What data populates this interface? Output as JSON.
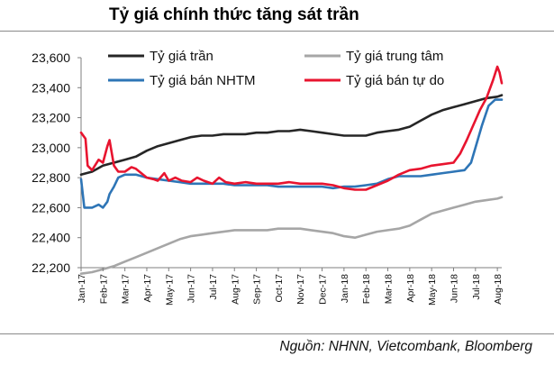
{
  "chart_data": {
    "type": "line",
    "title": "Tỷ giá chính thức tăng sát trần",
    "source": "Nguồn: NHNN, Vietcombank, Bloomberg",
    "ylim": [
      22200,
      23600
    ],
    "yticks": [
      22200,
      22400,
      22600,
      22800,
      23000,
      23200,
      23400,
      23600
    ],
    "ytick_labels": [
      "22,200",
      "22,400",
      "22,600",
      "22,800",
      "23,000",
      "23,200",
      "23,400",
      "23,600"
    ],
    "x_range": [
      0,
      19.2
    ],
    "categories": [
      "Jan-17",
      "Feb-17",
      "Mar-17",
      "Apr-17",
      "May-17",
      "Jun-17",
      "Jul-17",
      "Aug-17",
      "Sep-17",
      "Oct-17",
      "Nov-17",
      "Dec-17",
      "Jan-18",
      "Feb-18",
      "Mar-18",
      "Apr-18",
      "May-18",
      "Jun-18",
      "Jul-18",
      "Aug-18"
    ],
    "grid": false,
    "legend": "top",
    "series": [
      {
        "name": "Tỷ giá trần",
        "color": "#262626",
        "points": [
          [
            0,
            22820
          ],
          [
            0.5,
            22840
          ],
          [
            1,
            22880
          ],
          [
            1.5,
            22900
          ],
          [
            2,
            22920
          ],
          [
            2.5,
            22940
          ],
          [
            3,
            22980
          ],
          [
            3.5,
            23010
          ],
          [
            4,
            23030
          ],
          [
            4.5,
            23050
          ],
          [
            5,
            23070
          ],
          [
            5.5,
            23080
          ],
          [
            6,
            23080
          ],
          [
            6.5,
            23090
          ],
          [
            7,
            23090
          ],
          [
            7.5,
            23090
          ],
          [
            8,
            23100
          ],
          [
            8.5,
            23100
          ],
          [
            9,
            23110
          ],
          [
            9.5,
            23110
          ],
          [
            10,
            23120
          ],
          [
            10.5,
            23110
          ],
          [
            11,
            23100
          ],
          [
            11.5,
            23090
          ],
          [
            12,
            23080
          ],
          [
            12.5,
            23080
          ],
          [
            13,
            23080
          ],
          [
            13.5,
            23100
          ],
          [
            14,
            23110
          ],
          [
            14.5,
            23120
          ],
          [
            15,
            23140
          ],
          [
            15.5,
            23180
          ],
          [
            16,
            23220
          ],
          [
            16.5,
            23250
          ],
          [
            17,
            23270
          ],
          [
            17.5,
            23290
          ],
          [
            18,
            23310
          ],
          [
            18.5,
            23330
          ],
          [
            19,
            23340
          ],
          [
            19.2,
            23350
          ]
        ]
      },
      {
        "name": "Tỷ giá trung tâm",
        "color": "#a6a6a6",
        "points": [
          [
            0,
            22160
          ],
          [
            0.5,
            22170
          ],
          [
            1,
            22190
          ],
          [
            1.5,
            22210
          ],
          [
            2,
            22240
          ],
          [
            2.5,
            22270
          ],
          [
            3,
            22300
          ],
          [
            3.5,
            22330
          ],
          [
            4,
            22360
          ],
          [
            4.5,
            22390
          ],
          [
            5,
            22410
          ],
          [
            5.5,
            22420
          ],
          [
            6,
            22430
          ],
          [
            6.5,
            22440
          ],
          [
            7,
            22450
          ],
          [
            7.5,
            22450
          ],
          [
            8,
            22450
          ],
          [
            8.5,
            22450
          ],
          [
            9,
            22460
          ],
          [
            9.5,
            22460
          ],
          [
            10,
            22460
          ],
          [
            10.5,
            22450
          ],
          [
            11,
            22440
          ],
          [
            11.5,
            22430
          ],
          [
            12,
            22410
          ],
          [
            12.5,
            22400
          ],
          [
            13,
            22420
          ],
          [
            13.5,
            22440
          ],
          [
            14,
            22450
          ],
          [
            14.5,
            22460
          ],
          [
            15,
            22480
          ],
          [
            15.5,
            22520
          ],
          [
            16,
            22560
          ],
          [
            16.5,
            22580
          ],
          [
            17,
            22600
          ],
          [
            17.5,
            22620
          ],
          [
            18,
            22640
          ],
          [
            18.5,
            22650
          ],
          [
            19,
            22660
          ],
          [
            19.2,
            22670
          ]
        ]
      },
      {
        "name": "Tỷ giá bán NHTM",
        "color": "#2e75b6",
        "points": [
          [
            0,
            22790
          ],
          [
            0.15,
            22600
          ],
          [
            0.5,
            22600
          ],
          [
            0.8,
            22620
          ],
          [
            1,
            22600
          ],
          [
            1.2,
            22640
          ],
          [
            1.3,
            22690
          ],
          [
            1.5,
            22740
          ],
          [
            1.7,
            22800
          ],
          [
            2,
            22820
          ],
          [
            2.5,
            22820
          ],
          [
            3,
            22800
          ],
          [
            3.5,
            22790
          ],
          [
            4,
            22780
          ],
          [
            4.5,
            22770
          ],
          [
            5,
            22760
          ],
          [
            5.5,
            22760
          ],
          [
            6,
            22760
          ],
          [
            6.5,
            22760
          ],
          [
            7,
            22750
          ],
          [
            7.5,
            22750
          ],
          [
            8,
            22750
          ],
          [
            8.5,
            22750
          ],
          [
            9,
            22740
          ],
          [
            9.5,
            22740
          ],
          [
            10,
            22740
          ],
          [
            10.5,
            22740
          ],
          [
            11,
            22740
          ],
          [
            11.5,
            22730
          ],
          [
            12,
            22740
          ],
          [
            12.5,
            22740
          ],
          [
            13,
            22750
          ],
          [
            13.5,
            22760
          ],
          [
            14,
            22790
          ],
          [
            14.5,
            22810
          ],
          [
            15,
            22810
          ],
          [
            15.5,
            22810
          ],
          [
            16,
            22820
          ],
          [
            16.5,
            22830
          ],
          [
            17,
            22840
          ],
          [
            17.5,
            22850
          ],
          [
            17.8,
            22900
          ],
          [
            18,
            23000
          ],
          [
            18.3,
            23150
          ],
          [
            18.6,
            23280
          ],
          [
            18.9,
            23320
          ],
          [
            19.2,
            23320
          ]
        ]
      },
      {
        "name": "Tỷ giá bán tự do",
        "color": "#e8142f",
        "points": [
          [
            0,
            23100
          ],
          [
            0.2,
            23060
          ],
          [
            0.3,
            22880
          ],
          [
            0.5,
            22850
          ],
          [
            0.8,
            22920
          ],
          [
            1,
            22900
          ],
          [
            1.2,
            23010
          ],
          [
            1.3,
            23050
          ],
          [
            1.5,
            22880
          ],
          [
            1.7,
            22840
          ],
          [
            2,
            22840
          ],
          [
            2.3,
            22870
          ],
          [
            2.5,
            22860
          ],
          [
            3,
            22800
          ],
          [
            3.3,
            22790
          ],
          [
            3.5,
            22780
          ],
          [
            3.8,
            22830
          ],
          [
            4,
            22780
          ],
          [
            4.3,
            22800
          ],
          [
            4.6,
            22780
          ],
          [
            5,
            22770
          ],
          [
            5.3,
            22800
          ],
          [
            5.6,
            22780
          ],
          [
            6,
            22760
          ],
          [
            6.3,
            22800
          ],
          [
            6.6,
            22770
          ],
          [
            7,
            22760
          ],
          [
            7.5,
            22770
          ],
          [
            8,
            22760
          ],
          [
            8.5,
            22760
          ],
          [
            9,
            22760
          ],
          [
            9.5,
            22770
          ],
          [
            10,
            22760
          ],
          [
            10.5,
            22760
          ],
          [
            11,
            22760
          ],
          [
            11.5,
            22750
          ],
          [
            12,
            22730
          ],
          [
            12.5,
            22720
          ],
          [
            13,
            22720
          ],
          [
            13.5,
            22750
          ],
          [
            14,
            22780
          ],
          [
            14.5,
            22820
          ],
          [
            15,
            22850
          ],
          [
            15.5,
            22860
          ],
          [
            16,
            22880
          ],
          [
            16.5,
            22890
          ],
          [
            17,
            22900
          ],
          [
            17.3,
            22960
          ],
          [
            17.6,
            23050
          ],
          [
            17.9,
            23150
          ],
          [
            18.2,
            23250
          ],
          [
            18.5,
            23330
          ],
          [
            18.8,
            23450
          ],
          [
            19,
            23540
          ],
          [
            19.1,
            23500
          ],
          [
            19.2,
            23430
          ]
        ]
      }
    ]
  }
}
